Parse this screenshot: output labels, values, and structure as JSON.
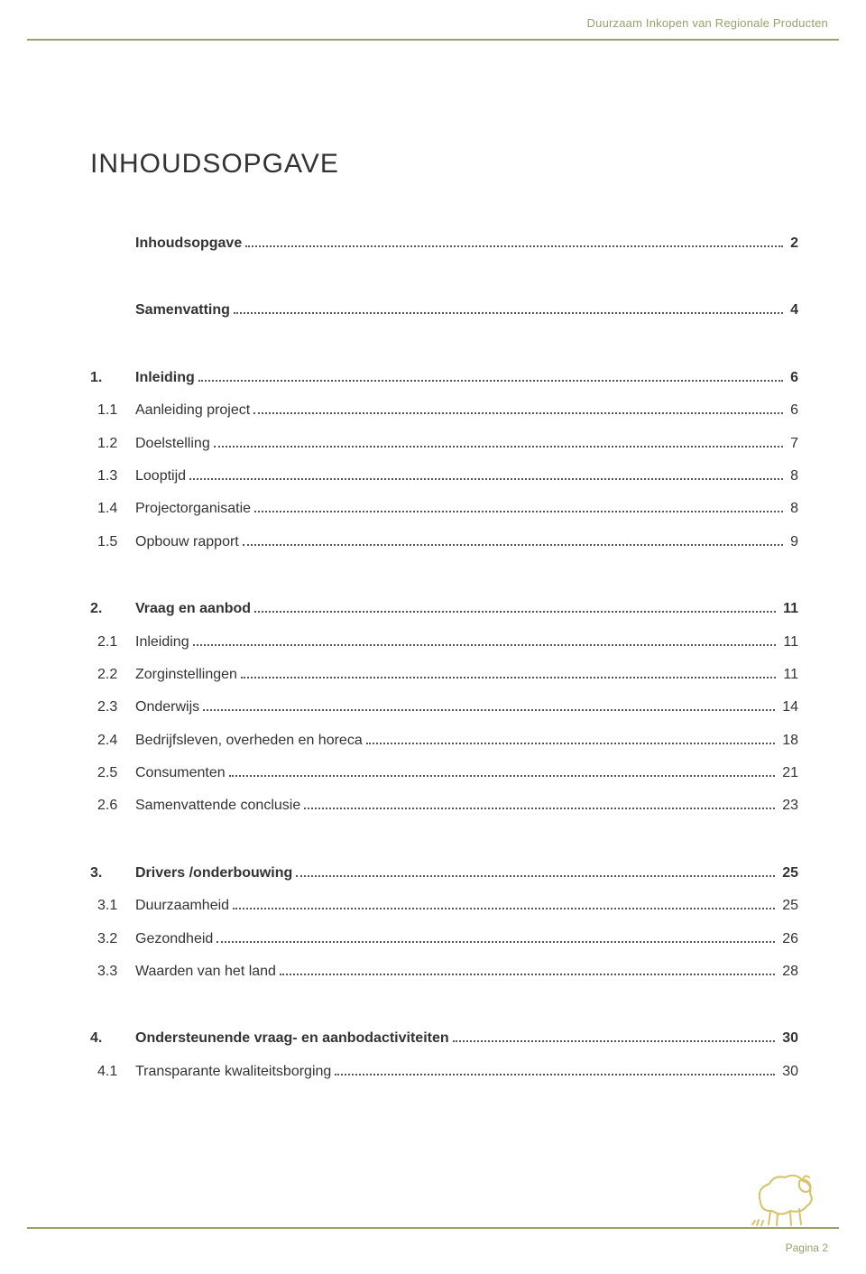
{
  "colors": {
    "accent": "#9aa06a",
    "text": "#333333",
    "logo": "#d6c36b",
    "footer_accent": "#9aa06a"
  },
  "header": {
    "running_title": "Duurzaam Inkopen van Regionale Producten"
  },
  "title": "INHOUDSOPGAVE",
  "toc": [
    {
      "type": "section",
      "rows": [
        {
          "level": "top",
          "bold": true,
          "num": "",
          "label": "Inhoudsopgave",
          "page": "2"
        }
      ]
    },
    {
      "type": "section",
      "rows": [
        {
          "level": "top",
          "bold": true,
          "num": "",
          "label": "Samenvatting",
          "page": "4"
        }
      ]
    },
    {
      "type": "section",
      "rows": [
        {
          "level": "top",
          "bold": true,
          "num": "1.",
          "label": "Inleiding",
          "page": "6"
        },
        {
          "level": "sub",
          "bold": false,
          "num": "1.1",
          "label": "Aanleiding project",
          "page": "6"
        },
        {
          "level": "sub",
          "bold": false,
          "num": "1.2",
          "label": "Doelstelling",
          "page": "7"
        },
        {
          "level": "sub",
          "bold": false,
          "num": "1.3",
          "label": "Looptijd",
          "page": "8"
        },
        {
          "level": "sub",
          "bold": false,
          "num": "1.4",
          "label": "Projectorganisatie",
          "page": "8"
        },
        {
          "level": "sub",
          "bold": false,
          "num": "1.5",
          "label": "Opbouw rapport",
          "page": "9"
        }
      ]
    },
    {
      "type": "section",
      "rows": [
        {
          "level": "top",
          "bold": true,
          "num": "2.",
          "label": "Vraag en aanbod",
          "page": "11"
        },
        {
          "level": "sub",
          "bold": false,
          "num": "2.1",
          "label": "Inleiding",
          "page": "11"
        },
        {
          "level": "sub",
          "bold": false,
          "num": "2.2",
          "label": "Zorginstellingen",
          "page": "11"
        },
        {
          "level": "sub",
          "bold": false,
          "num": "2.3",
          "label": "Onderwijs",
          "page": "14"
        },
        {
          "level": "sub",
          "bold": false,
          "num": "2.4",
          "label": "Bedrijfsleven, overheden en horeca",
          "page": "18"
        },
        {
          "level": "sub",
          "bold": false,
          "num": "2.5",
          "label": "Consumenten",
          "page": "21"
        },
        {
          "level": "sub",
          "bold": false,
          "num": "2.6",
          "label": "Samenvattende conclusie",
          "page": "23"
        }
      ]
    },
    {
      "type": "section",
      "rows": [
        {
          "level": "top",
          "bold": true,
          "num": "3.",
          "label": "Drivers /onderbouwing",
          "page": "25"
        },
        {
          "level": "sub",
          "bold": false,
          "num": "3.1",
          "label": "Duurzaamheid",
          "page": "25"
        },
        {
          "level": "sub",
          "bold": false,
          "num": "3.2",
          "label": "Gezondheid",
          "page": "26"
        },
        {
          "level": "sub",
          "bold": false,
          "num": "3.3",
          "label": "Waarden van het land",
          "page": "28"
        }
      ]
    },
    {
      "type": "section",
      "rows": [
        {
          "level": "top",
          "bold": true,
          "num": "4.",
          "label": "Ondersteunende vraag- en aanbodactiviteiten",
          "page": "30"
        },
        {
          "level": "sub",
          "bold": false,
          "num": "4.1",
          "label": "Transparante kwaliteitsborging",
          "page": "30"
        }
      ]
    }
  ],
  "footer": {
    "page_label": "Pagina",
    "page_number": "2"
  }
}
